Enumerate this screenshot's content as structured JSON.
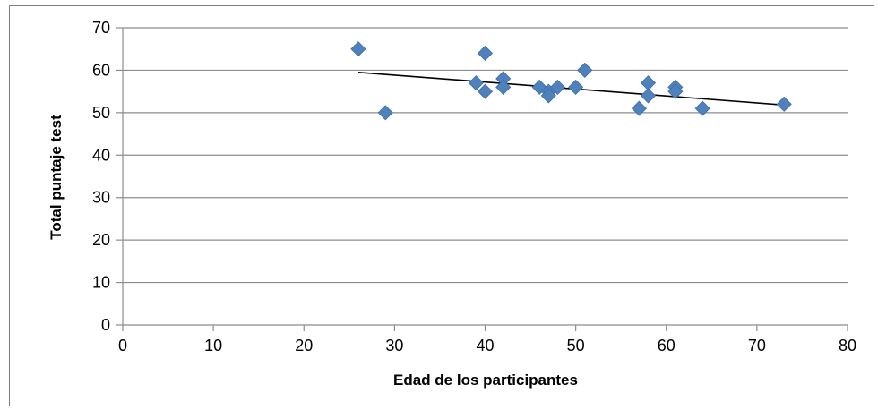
{
  "chart_data": {
    "type": "scatter",
    "title": "",
    "xlabel": "Edad de los participantes",
    "ylabel": "Total puntaje test",
    "xlim": [
      0,
      80
    ],
    "ylim": [
      0,
      70
    ],
    "x_ticks": [
      0,
      10,
      20,
      30,
      40,
      50,
      60,
      70,
      80
    ],
    "y_ticks": [
      0,
      10,
      20,
      30,
      40,
      50,
      60,
      70
    ],
    "grid": "horizontal major gridlines",
    "legend": "none",
    "marker": "diamond",
    "marker_color": "#4f81bd",
    "trendline": {
      "type": "linear",
      "x": [
        26,
        73
      ],
      "y": [
        59.5,
        51.8
      ],
      "color": "#000000"
    },
    "series": [
      {
        "points": [
          {
            "x": 26,
            "y": 65
          },
          {
            "x": 29,
            "y": 50
          },
          {
            "x": 39,
            "y": 57
          },
          {
            "x": 40,
            "y": 55
          },
          {
            "x": 40,
            "y": 64
          },
          {
            "x": 42,
            "y": 58
          },
          {
            "x": 42,
            "y": 56
          },
          {
            "x": 46,
            "y": 56
          },
          {
            "x": 47,
            "y": 55
          },
          {
            "x": 47,
            "y": 54
          },
          {
            "x": 48,
            "y": 56
          },
          {
            "x": 50,
            "y": 56
          },
          {
            "x": 51,
            "y": 60
          },
          {
            "x": 57,
            "y": 51
          },
          {
            "x": 58,
            "y": 57
          },
          {
            "x": 58,
            "y": 54
          },
          {
            "x": 61,
            "y": 56
          },
          {
            "x": 61,
            "y": 55
          },
          {
            "x": 64,
            "y": 51
          },
          {
            "x": 73,
            "y": 52
          }
        ]
      }
    ]
  }
}
